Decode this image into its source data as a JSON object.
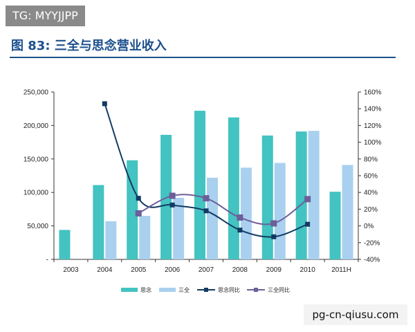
{
  "header": {
    "tag": "TG: MYYJJPP",
    "title": "图 83:  三全与思念营业收入"
  },
  "watermark": "pg-cn-qiusu.com",
  "colors": {
    "sinian_bar": "#43c3c1",
    "sanquan_bar": "#a9d1ef",
    "sinian_line": "#123a63",
    "sanquan_line": "#6c5f99",
    "axis": "#333333",
    "title": "#1b4f8c"
  },
  "chart_data": {
    "type": "bar",
    "categories": [
      "2003",
      "2004",
      "2005",
      "2006",
      "2007",
      "2008",
      "2009",
      "2010",
      "2011H"
    ],
    "series": [
      {
        "name": "思念",
        "kind": "bar",
        "axis": "left",
        "values": [
          44000,
          111000,
          148000,
          186000,
          222000,
          212000,
          185000,
          191000,
          101000
        ]
      },
      {
        "name": "三全",
        "kind": "bar",
        "axis": "left",
        "values": [
          null,
          57000,
          65000,
          92000,
          122000,
          137000,
          144000,
          192000,
          141000
        ]
      },
      {
        "name": "思念同比",
        "kind": "line",
        "axis": "right",
        "values": [
          null,
          146,
          33,
          25,
          18,
          -5,
          -13,
          2,
          null
        ]
      },
      {
        "name": "三全同比",
        "kind": "line",
        "axis": "right",
        "values": [
          null,
          null,
          15,
          36,
          33,
          10,
          3,
          32,
          null
        ]
      }
    ],
    "y_left": {
      "ylim": [
        0,
        250000
      ],
      "ticks": [
        "-",
        "50,000",
        "100,000",
        "150,000",
        "200,000",
        "250,000"
      ]
    },
    "y_right": {
      "ylim": [
        -40,
        160
      ],
      "ticks": [
        "-40%",
        "-20%",
        "0%",
        "20%",
        "40%",
        "60%",
        "80%",
        "100%",
        "120%",
        "140%",
        "160%"
      ]
    },
    "legend": {
      "placement": "bottom",
      "items": [
        "思念",
        "三全",
        "思念同比",
        "三全同比"
      ]
    },
    "grid": false
  }
}
